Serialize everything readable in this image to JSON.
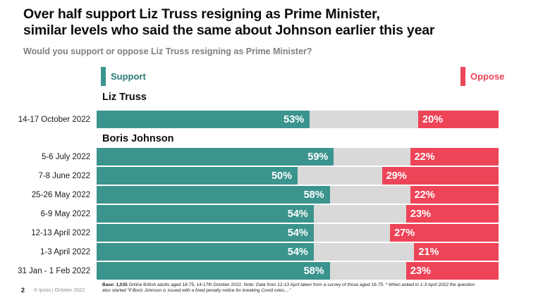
{
  "title_line1": "Over half support Liz Truss resigning as Prime Minister,",
  "title_line2": "similar levels who said the same about Johnson earlier this year",
  "subtitle": "Would you support or oppose Liz Truss resigning as Prime Minister?",
  "legend": {
    "support_label": "Support",
    "oppose_label": "Oppose"
  },
  "colors": {
    "support": "#3b948e",
    "oppose": "#ee4458",
    "track": "#d9d9d9",
    "support_text": "#287a74"
  },
  "chart_data": {
    "type": "bar",
    "orientation": "horizontal-diverging",
    "series": [
      "Support",
      "Oppose"
    ],
    "value_suffix": "%",
    "axis_range": [
      0,
      100
    ],
    "grid": false,
    "legend_position": "top",
    "groups": [
      {
        "label": "Liz Truss",
        "rows": [
          {
            "date": "14-17 October 2022",
            "support": 53,
            "oppose": 20
          }
        ]
      },
      {
        "label": "Boris Johnson",
        "rows": [
          {
            "date": "5-6 July 2022",
            "support": 59,
            "oppose": 22
          },
          {
            "date": "7-8 June 2022",
            "support": 50,
            "oppose": 29
          },
          {
            "date": "25-26 May 2022",
            "support": 58,
            "oppose": 22
          },
          {
            "date": "6-9 May 2022",
            "support": 54,
            "oppose": 23
          },
          {
            "date": "12-13 April 2022",
            "support": 54,
            "oppose": 27
          },
          {
            "date": "1-3 April 2022",
            "support": 54,
            "oppose": 21
          },
          {
            "date": "31 Jan - 1 Feb 2022",
            "support": 58,
            "oppose": 23
          }
        ]
      }
    ]
  },
  "footer": {
    "note_bold_prefix": "Base: 1,035",
    "note_rest": " Online British adults aged 18-75, 14-17th October 2022. ",
    "note_italic": "Note: Data from 12-13 April taken from a survey of those aged 16-75. * When asked in 1-3 April 2022 the question also started “If Boris Johnson is issued with a fixed penalty notice for breaking Covid rules....”",
    "page_number": "2",
    "copyright": "© Ipsos | October 2022"
  }
}
